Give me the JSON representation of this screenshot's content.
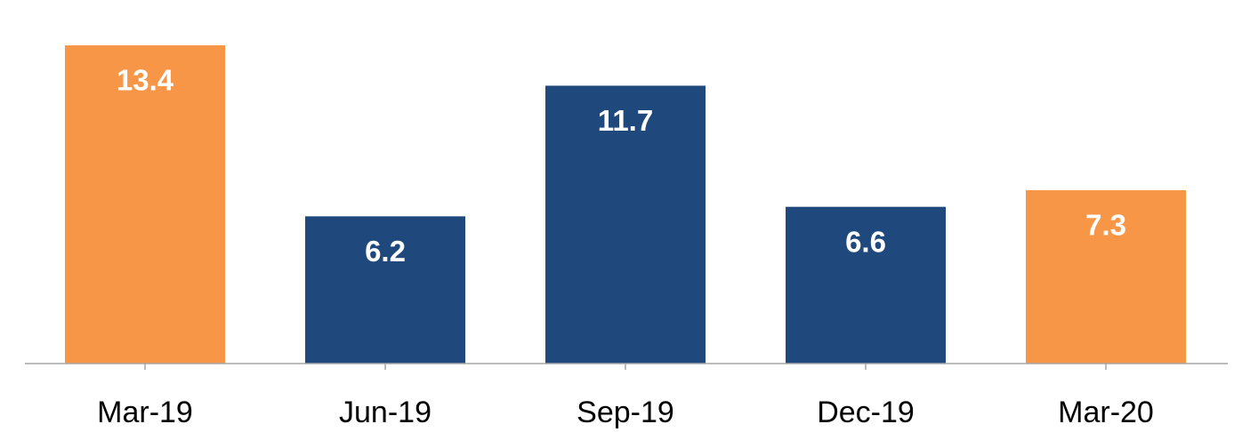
{
  "chart_data": {
    "type": "bar",
    "categories": [
      "Mar-19",
      "Jun-19",
      "Sep-19",
      "Dec-19",
      "Mar-20"
    ],
    "values": [
      13.4,
      6.2,
      11.7,
      6.6,
      7.3
    ],
    "colors": [
      "#f79646",
      "#1f497d",
      "#1f497d",
      "#1f497d",
      "#f79646"
    ]
  }
}
